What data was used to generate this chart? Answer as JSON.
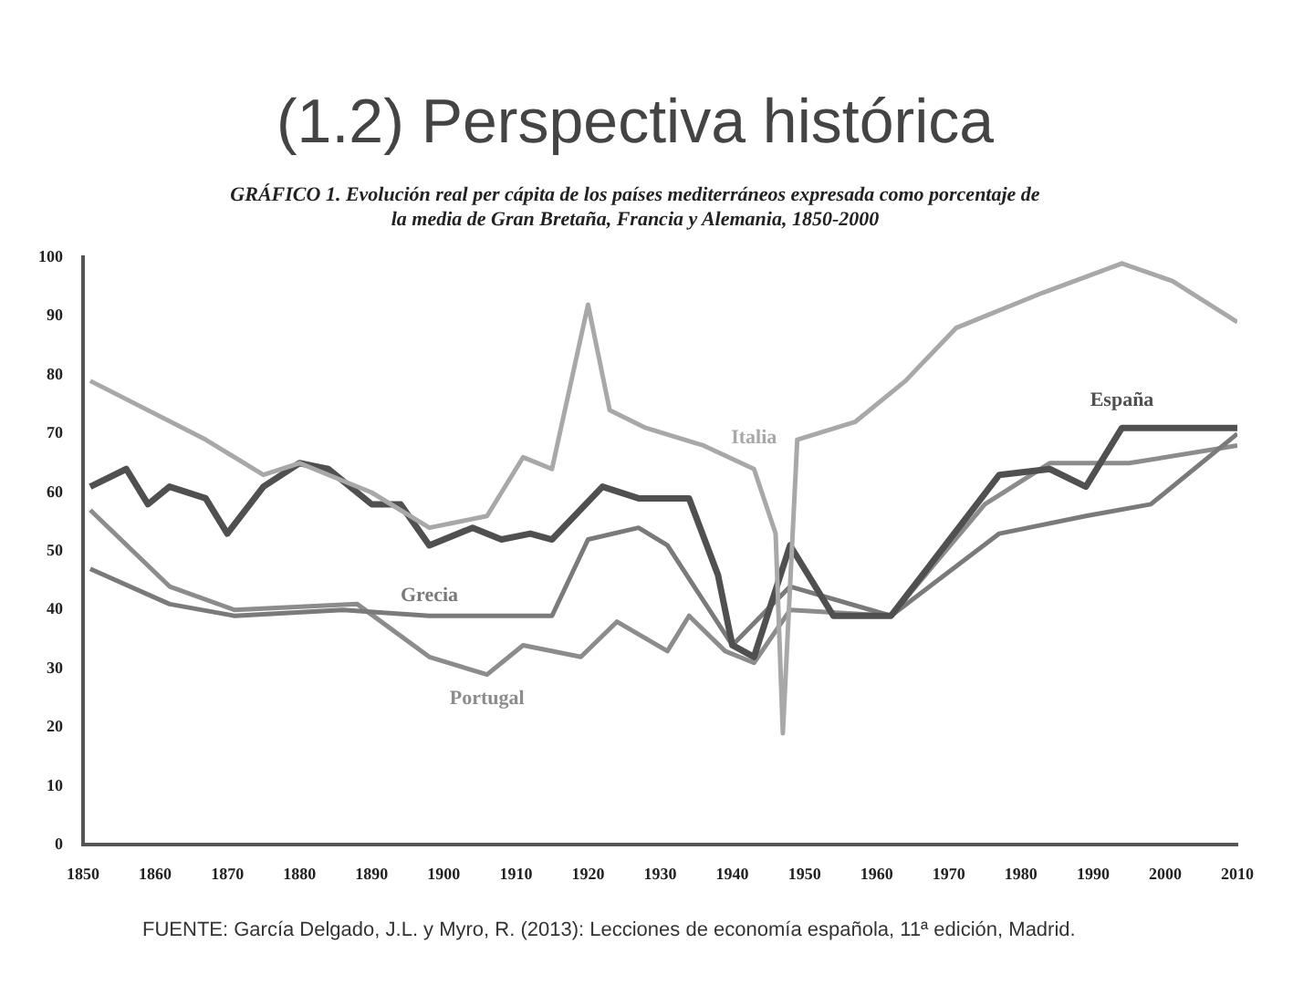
{
  "chart_data": {
    "type": "line",
    "title": "(1.2) Perspectiva histórica",
    "subtitle": "GRÁFICO 1. Evolución real per cápita de los países mediterráneos expresada como porcentaje de la media de Gran Bretaña, Francia y Alemania, 1850-2000",
    "xlim": [
      1850,
      2010
    ],
    "xticks": [
      1850,
      1860,
      1870,
      1880,
      1890,
      1900,
      1910,
      1920,
      1930,
      1940,
      1950,
      1960,
      1970,
      1980,
      1990,
      2000,
      2010
    ],
    "ylim": [
      0,
      100
    ],
    "yticks": [
      0,
      10,
      20,
      30,
      40,
      50,
      60,
      70,
      80,
      90,
      100
    ],
    "grid": false,
    "legend": false,
    "marker": "none",
    "line_style": "solid",
    "series": [
      {
        "name": "Italia",
        "color": "#a8a8a8",
        "x": [
          1851,
          1867,
          1875,
          1880,
          1890,
          1898,
          1906,
          1911,
          1915,
          1920,
          1923,
          1928,
          1936,
          1943,
          1946,
          1947,
          1949,
          1957,
          1964,
          1971,
          1983,
          1994,
          2001,
          2010
        ],
        "values": [
          79,
          69,
          63,
          65,
          60,
          54,
          56,
          66,
          64,
          92,
          74,
          71,
          68,
          64,
          53,
          19,
          69,
          72,
          79,
          88,
          94,
          99,
          96,
          89
        ]
      },
      {
        "name": "España",
        "color": "#505050",
        "x": [
          1851,
          1856,
          1859,
          1862,
          1867,
          1870,
          1875,
          1880,
          1884,
          1890,
          1894,
          1898,
          1904,
          1908,
          1912,
          1915,
          1922,
          1927,
          1934,
          1938,
          1940,
          1943,
          1948,
          1954,
          1962,
          1977,
          1984,
          1989,
          1994,
          2010
        ],
        "values": [
          61,
          64,
          58,
          61,
          59,
          53,
          61,
          65,
          64,
          58,
          58,
          51,
          54,
          52,
          53,
          52,
          61,
          59,
          59,
          46,
          34,
          32,
          51,
          39,
          39,
          63,
          64,
          61,
          71,
          71
        ]
      },
      {
        "name": "Grecia",
        "color": "#7a7a7a",
        "x": [
          1851,
          1862,
          1871,
          1886,
          1898,
          1915,
          1920,
          1927,
          1931,
          1940,
          1948,
          1962,
          1977,
          1989,
          1998,
          2010
        ],
        "values": [
          47,
          41,
          39,
          40,
          39,
          39,
          52,
          54,
          51,
          34,
          44,
          39,
          53,
          56,
          58,
          70
        ]
      },
      {
        "name": "Portugal",
        "color": "#8c8c8c",
        "x": [
          1851,
          1862,
          1871,
          1888,
          1898,
          1906,
          1911,
          1919,
          1924,
          1931,
          1934,
          1939,
          1943,
          1948,
          1962,
          1975,
          1984,
          1995,
          2010
        ],
        "values": [
          57,
          44,
          40,
          41,
          32,
          29,
          34,
          32,
          38,
          33,
          39,
          33,
          31,
          40,
          39,
          58,
          65,
          65,
          68
        ]
      }
    ],
    "annotations": [
      "FUENTE: García Delgado, J.L. y Myro, R. (2013): Lecciones de economía española, 11ª edición, Madrid."
    ]
  }
}
